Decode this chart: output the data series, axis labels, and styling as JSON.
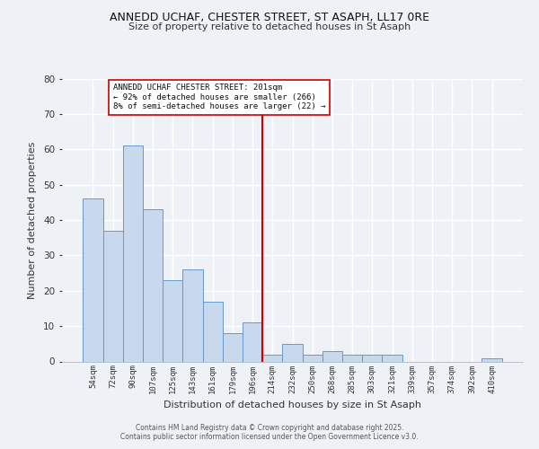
{
  "title1": "ANNEDD UCHAF, CHESTER STREET, ST ASAPH, LL17 0RE",
  "title2": "Size of property relative to detached houses in St Asaph",
  "xlabel": "Distribution of detached houses by size in St Asaph",
  "ylabel": "Number of detached properties",
  "categories": [
    "54sqm",
    "72sqm",
    "90sqm",
    "107sqm",
    "125sqm",
    "143sqm",
    "161sqm",
    "179sqm",
    "196sqm",
    "214sqm",
    "232sqm",
    "250sqm",
    "268sqm",
    "285sqm",
    "303sqm",
    "321sqm",
    "339sqm",
    "357sqm",
    "374sqm",
    "392sqm",
    "410sqm"
  ],
  "values": [
    46,
    37,
    61,
    43,
    23,
    26,
    17,
    8,
    11,
    2,
    5,
    2,
    3,
    2,
    2,
    2,
    0,
    0,
    0,
    0,
    1
  ],
  "bar_color": "#c8d8ed",
  "bar_edge_color": "#6699cc",
  "vline_x_index": 8,
  "vline_color": "#cc0000",
  "annotation_text": "ANNEDD UCHAF CHESTER STREET: 201sqm\n← 92% of detached houses are smaller (266)\n8% of semi-detached houses are larger (22) →",
  "annotation_box_color": "#ffffff",
  "annotation_box_edge_color": "#cc0000",
  "ylim": [
    0,
    80
  ],
  "yticks": [
    0,
    10,
    20,
    30,
    40,
    50,
    60,
    70,
    80
  ],
  "footer1": "Contains HM Land Registry data © Crown copyright and database right 2025.",
  "footer2": "Contains public sector information licensed under the Open Government Licence v3.0.",
  "bg_color": "#eef2f7",
  "plot_bg_color": "#eef2f7"
}
